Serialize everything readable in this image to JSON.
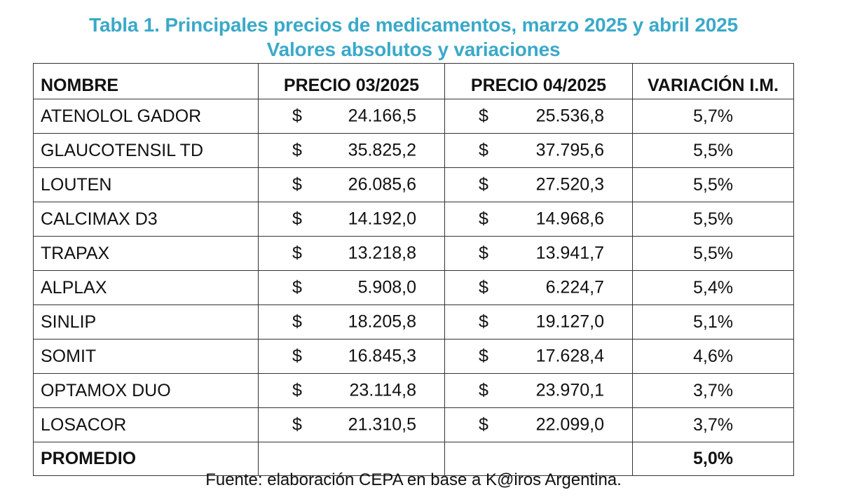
{
  "title_line1": "Tabla 1. Principales precios de medicamentos, marzo 2025 y abril 2025",
  "title_line2": "Valores absolutos y variaciones",
  "colors": {
    "title": "#3aa9c9",
    "border": "#333333",
    "text": "#111111"
  },
  "headers": {
    "name": "NOMBRE",
    "price_march": "PRECIO 03/2025",
    "price_april": "PRECIO 04/2025",
    "variation": "VARIACIÓN I.M."
  },
  "currency_symbol": "$",
  "rows": [
    {
      "name": "ATENOLOL GADOR",
      "price_march": "24.166,5",
      "price_april": "25.536,8",
      "variation": "5,7%"
    },
    {
      "name": "GLAUCOTENSIL TD",
      "price_march": "35.825,2",
      "price_april": "37.795,6",
      "variation": "5,5%"
    },
    {
      "name": "LOUTEN",
      "price_march": "26.085,6",
      "price_april": "27.520,3",
      "variation": "5,5%"
    },
    {
      "name": "CALCIMAX D3",
      "price_march": "14.192,0",
      "price_april": "14.968,6",
      "variation": "5,5%"
    },
    {
      "name": "TRAPAX",
      "price_march": "13.218,8",
      "price_april": "13.941,7",
      "variation": "5,5%"
    },
    {
      "name": "ALPLAX",
      "price_march": "5.908,0",
      "price_april": "6.224,7",
      "variation": "5,4%"
    },
    {
      "name": "SINLIP",
      "price_march": "18.205,8",
      "price_april": "19.127,0",
      "variation": "5,1%"
    },
    {
      "name": "SOMIT",
      "price_march": "16.845,3",
      "price_april": "17.628,4",
      "variation": "4,6%"
    },
    {
      "name": "OPTAMOX DUO",
      "price_march": "23.114,8",
      "price_april": "23.970,1",
      "variation": "3,7%"
    },
    {
      "name": "LOSACOR",
      "price_march": "21.310,5",
      "price_april": "22.099,0",
      "variation": "3,7%"
    }
  ],
  "total": {
    "name": "PROMEDIO",
    "variation": "5,0%"
  },
  "source": "Fuente: elaboración CEPA en base a K@iros Argentina."
}
